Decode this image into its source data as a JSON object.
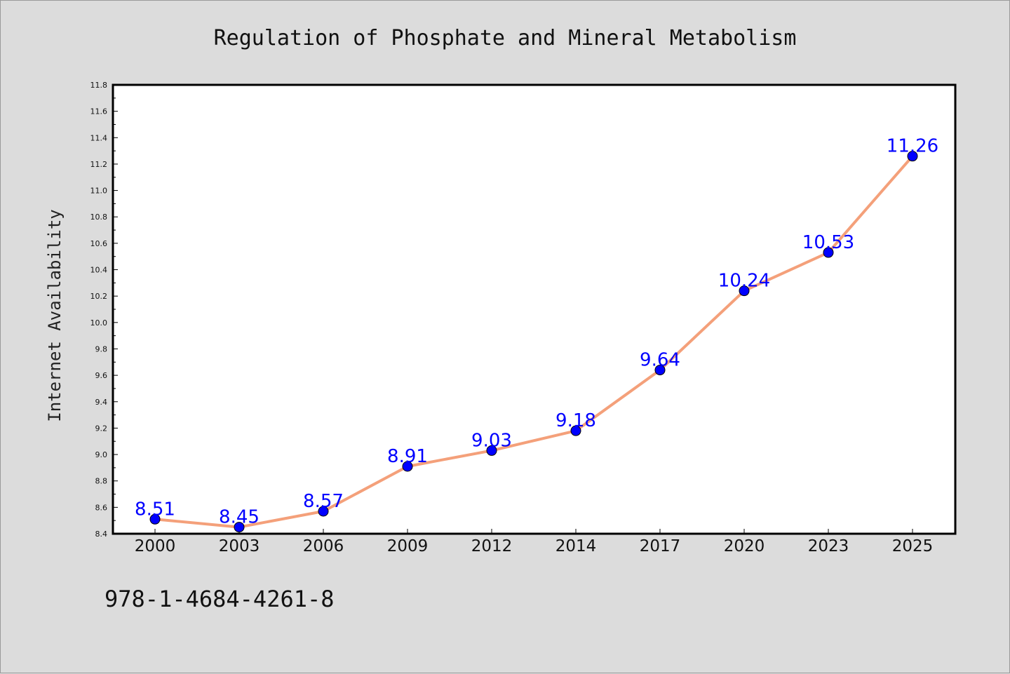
{
  "chart_data": {
    "type": "line",
    "title": "Regulation of Phosphate and Mineral Metabolism",
    "xlabel": "",
    "ylabel": "Internet Availability",
    "categories": [
      "2000",
      "2003",
      "2006",
      "2009",
      "2012",
      "2014",
      "2017",
      "2020",
      "2023",
      "2025"
    ],
    "series": [
      {
        "values": [
          8.51,
          8.45,
          8.57,
          8.91,
          9.03,
          9.18,
          9.64,
          10.24,
          10.53,
          11.26
        ],
        "data_labels": [
          "8.51",
          "8.45",
          "8.57",
          "8.91",
          "9.03",
          "9.18",
          "9.64",
          "10.24",
          "10.53",
          "11.26"
        ],
        "line_color": "#f4a07a",
        "marker_color": "#0000ff"
      }
    ],
    "ylim": [
      8.4,
      11.8
    ],
    "yticks": [
      "8.4",
      "8.6",
      "8.8",
      "9.0",
      "9.2",
      "9.4",
      "9.6",
      "9.8",
      "10.0",
      "10.2",
      "10.4",
      "10.6",
      "10.8",
      "11.0",
      "11.2",
      "11.4",
      "11.6",
      "11.8"
    ],
    "grid": false,
    "legend": "none",
    "label_color": "#0000ff",
    "background": "#dcdcdc",
    "plot_background": "#ffffff"
  },
  "footer": {
    "isbn": "978-1-4684-4261-8"
  }
}
